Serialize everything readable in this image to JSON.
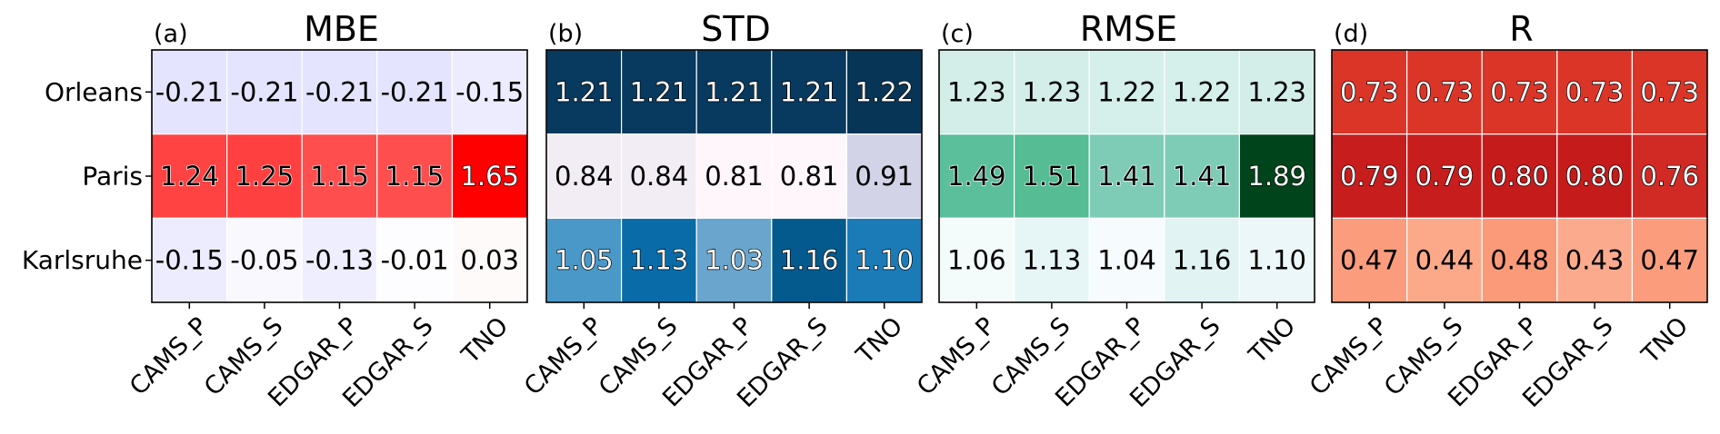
{
  "chart_data": [
    {
      "type": "heatmap",
      "panel_label": "(a)",
      "title": "MBE",
      "rows": [
        "Orleans",
        "Paris",
        "Karlsruhe"
      ],
      "columns": [
        "CAMS_P",
        "CAMS_S",
        "EDGAR_P",
        "EDGAR_S",
        "TNO"
      ],
      "value_labels": [
        [
          "-0.21",
          "-0.21",
          "-0.21",
          "-0.21",
          "-0.15"
        ],
        [
          "1.24",
          "1.25",
          "1.15",
          "1.15",
          "1.65"
        ],
        [
          "-0.15",
          "-0.05",
          "-0.13",
          "-0.01",
          "0.03"
        ]
      ],
      "values": [
        [
          -0.21,
          -0.21,
          -0.21,
          -0.21,
          -0.15
        ],
        [
          1.24,
          1.25,
          1.15,
          1.15,
          1.65
        ],
        [
          -0.15,
          -0.05,
          -0.13,
          -0.01,
          0.03
        ]
      ],
      "colormap": "bwr",
      "color_range": [
        -1.65,
        1.65
      ],
      "cell_colors": [
        [
          "#e4e4fe",
          "#e4e4fe",
          "#e4e4fe",
          "#e4e4fe",
          "#ececfe"
        ],
        [
          "#ff4242",
          "#ff4040",
          "#ff4e4e",
          "#ff4e4e",
          "#ff0000"
        ],
        [
          "#ececfe",
          "#f8f8fe",
          "#eeeeff",
          "#fdfdff",
          "#fffafa"
        ]
      ],
      "text_colors": [
        [
          "#000000",
          "#000000",
          "#000000",
          "#000000",
          "#000000"
        ],
        [
          "#000000",
          "#000000",
          "#000000",
          "#000000",
          "#ffffff"
        ],
        [
          "#000000",
          "#000000",
          "#000000",
          "#000000",
          "#000000"
        ]
      ],
      "outlined_text": [
        [
          false,
          false,
          false,
          false,
          false
        ],
        [
          true,
          true,
          true,
          true,
          true
        ],
        [
          false,
          false,
          false,
          false,
          false
        ]
      ]
    },
    {
      "type": "heatmap",
      "panel_label": "(b)",
      "title": "STD",
      "rows": [
        "Orleans",
        "Paris",
        "Karlsruhe"
      ],
      "columns": [
        "CAMS_P",
        "CAMS_S",
        "EDGAR_P",
        "EDGAR_S",
        "TNO"
      ],
      "value_labels": [
        [
          "1.21",
          "1.21",
          "1.21",
          "1.21",
          "1.22"
        ],
        [
          "0.84",
          "0.84",
          "0.81",
          "0.81",
          "0.91"
        ],
        [
          "1.05",
          "1.13",
          "1.03",
          "1.16",
          "1.10"
        ]
      ],
      "values": [
        [
          1.21,
          1.21,
          1.21,
          1.21,
          1.22
        ],
        [
          0.84,
          0.84,
          0.81,
          0.81,
          0.91
        ],
        [
          1.05,
          1.13,
          1.03,
          1.16,
          1.1
        ]
      ],
      "colormap": "PuBu",
      "cell_colors": [
        [
          "#08395e",
          "#08395e",
          "#08395e",
          "#08395e",
          "#073556"
        ],
        [
          "#f2ecf5",
          "#f2ecf5",
          "#fff6fb",
          "#fff6fb",
          "#d2d3e7"
        ],
        [
          "#4a98c8",
          "#0a6ba9",
          "#69a5cc",
          "#045a8d",
          "#1b7bb7"
        ]
      ],
      "text_colors": [
        [
          "#ffffff",
          "#ffffff",
          "#ffffff",
          "#ffffff",
          "#ffffff"
        ],
        [
          "#000000",
          "#000000",
          "#000000",
          "#000000",
          "#000000"
        ],
        [
          "#ffffff",
          "#ffffff",
          "#ffffff",
          "#ffffff",
          "#ffffff"
        ]
      ],
      "outlined_text": [
        [
          true,
          true,
          true,
          true,
          true
        ],
        [
          false,
          false,
          false,
          false,
          false
        ],
        [
          true,
          true,
          true,
          true,
          true
        ]
      ]
    },
    {
      "type": "heatmap",
      "panel_label": "(c)",
      "title": "RMSE",
      "rows": [
        "Orleans",
        "Paris",
        "Karlsruhe"
      ],
      "columns": [
        "CAMS_P",
        "CAMS_S",
        "EDGAR_P",
        "EDGAR_S",
        "TNO"
      ],
      "value_labels": [
        [
          "1.23",
          "1.23",
          "1.22",
          "1.22",
          "1.23"
        ],
        [
          "1.49",
          "1.51",
          "1.41",
          "1.41",
          "1.89"
        ],
        [
          "1.06",
          "1.13",
          "1.04",
          "1.16",
          "1.10"
        ]
      ],
      "values": [
        [
          1.23,
          1.23,
          1.22,
          1.22,
          1.23
        ],
        [
          1.49,
          1.51,
          1.41,
          1.41,
          1.89
        ],
        [
          1.06,
          1.13,
          1.04,
          1.16,
          1.1
        ]
      ],
      "colormap": "BuGn",
      "cell_colors": [
        [
          "#d3eee9",
          "#d3eee9",
          "#d5efea",
          "#d5efea",
          "#d3eee9"
        ],
        [
          "#5bbf9c",
          "#55bc93",
          "#7fccb6",
          "#7fccb6",
          "#00441b"
        ],
        [
          "#f4fbfb",
          "#e6f5f6",
          "#f6fcfd",
          "#e1f3f3",
          "#ebf7f8"
        ]
      ],
      "text_colors": [
        [
          "#000000",
          "#000000",
          "#000000",
          "#000000",
          "#000000"
        ],
        [
          "#000000",
          "#000000",
          "#000000",
          "#000000",
          "#ffffff"
        ],
        [
          "#000000",
          "#000000",
          "#000000",
          "#000000",
          "#000000"
        ]
      ],
      "outlined_text": [
        [
          false,
          false,
          false,
          false,
          false
        ],
        [
          true,
          true,
          true,
          true,
          true
        ],
        [
          false,
          false,
          false,
          false,
          false
        ]
      ]
    },
    {
      "type": "heatmap",
      "panel_label": "(d)",
      "title": "R",
      "rows": [
        "Orleans",
        "Paris",
        "Karlsruhe"
      ],
      "columns": [
        "CAMS_P",
        "CAMS_S",
        "EDGAR_P",
        "EDGAR_S",
        "TNO"
      ],
      "value_labels": [
        [
          "0.73",
          "0.73",
          "0.73",
          "0.73",
          "0.73"
        ],
        [
          "0.79",
          "0.79",
          "0.80",
          "0.80",
          "0.76"
        ],
        [
          "0.47",
          "0.44",
          "0.48",
          "0.43",
          "0.47"
        ]
      ],
      "values": [
        [
          0.73,
          0.73,
          0.73,
          0.73,
          0.73
        ],
        [
          0.79,
          0.79,
          0.8,
          0.8,
          0.76
        ],
        [
          0.47,
          0.44,
          0.48,
          0.43,
          0.47
        ]
      ],
      "colormap": "Reds",
      "cell_colors": [
        [
          "#db3528",
          "#db3528",
          "#db3528",
          "#db3528",
          "#db3528"
        ],
        [
          "#c71d1d",
          "#c71d1d",
          "#c51b1b",
          "#c51b1b",
          "#d12a25"
        ],
        [
          "#fb9d7d",
          "#fca98a",
          "#fb9a79",
          "#fcaa8d",
          "#fb9d7d"
        ]
      ],
      "text_colors": [
        [
          "#ffffff",
          "#ffffff",
          "#ffffff",
          "#ffffff",
          "#ffffff"
        ],
        [
          "#ffffff",
          "#ffffff",
          "#ffffff",
          "#ffffff",
          "#ffffff"
        ],
        [
          "#000000",
          "#000000",
          "#000000",
          "#000000",
          "#000000"
        ]
      ],
      "outlined_text": [
        [
          true,
          true,
          true,
          true,
          true
        ],
        [
          true,
          true,
          true,
          true,
          true
        ],
        [
          false,
          false,
          false,
          false,
          false
        ]
      ]
    }
  ]
}
